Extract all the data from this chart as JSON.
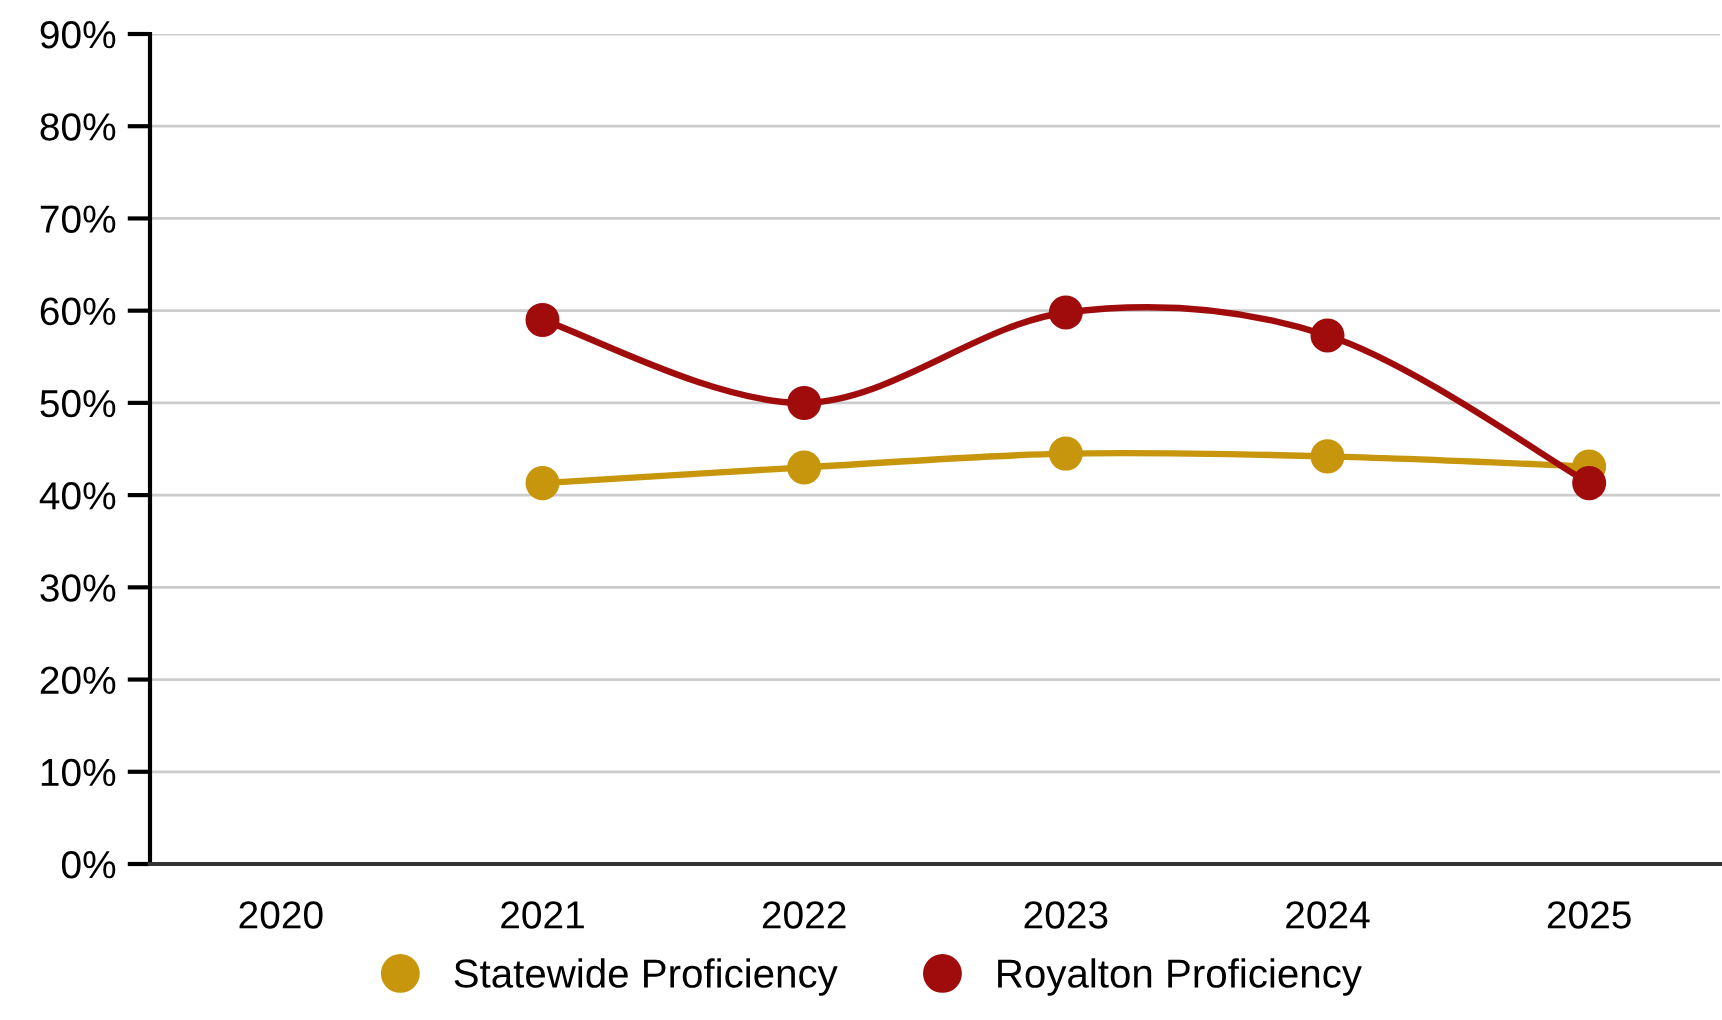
{
  "chart_data": {
    "type": "line",
    "categories": [
      "2020",
      "2021",
      "2022",
      "2023",
      "2024",
      "2025"
    ],
    "series": [
      {
        "name": "Statewide Proficiency",
        "color": "#c8960c",
        "values": [
          null,
          41.3,
          43.0,
          44.5,
          44.2,
          43.1
        ]
      },
      {
        "name": "Royalton Proficiency",
        "color": "#a00c0c",
        "values": [
          null,
          59.0,
          50.0,
          59.8,
          57.3,
          41.3
        ]
      }
    ],
    "ylim": [
      0,
      90
    ],
    "yticks": [
      {
        "value": 0,
        "label": "0%"
      },
      {
        "value": 10,
        "label": "10%"
      },
      {
        "value": 20,
        "label": "20%"
      },
      {
        "value": 30,
        "label": "30%"
      },
      {
        "value": 40,
        "label": "40%"
      },
      {
        "value": 50,
        "label": "50%"
      },
      {
        "value": 60,
        "label": "60%"
      },
      {
        "value": 70,
        "label": "70%"
      },
      {
        "value": 80,
        "label": "80%"
      },
      {
        "value": 90,
        "label": "90%"
      }
    ],
    "grid": "y",
    "legend": "bottom",
    "marker": "circle",
    "line_style": "solid"
  }
}
